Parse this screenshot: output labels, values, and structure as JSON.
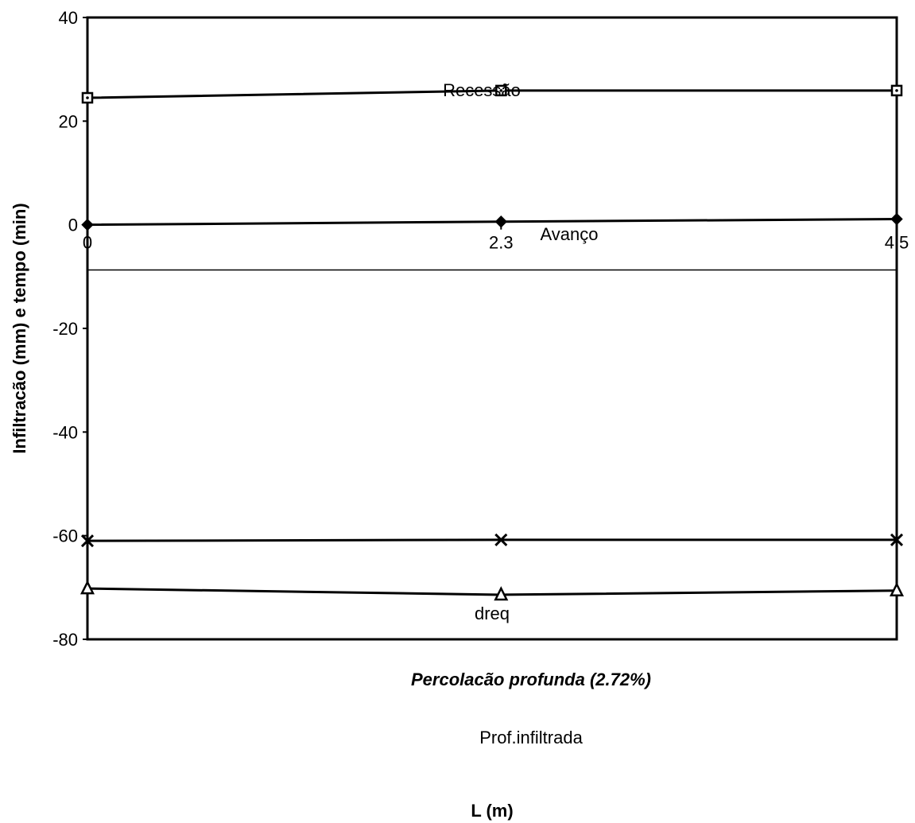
{
  "chart_data": {
    "type": "line",
    "title": "",
    "xlabel": "L (m)",
    "ylabel": "Infiltracão (mm) e tempo (min)",
    "xlim": [
      0,
      4.5
    ],
    "ylim": [
      -80,
      40
    ],
    "x_ticks": [
      "0",
      "2.3",
      "4.5"
    ],
    "y_ticks": [
      "40",
      "20",
      "0",
      "-20",
      "-40",
      "-60",
      "-80"
    ],
    "grid": false,
    "series": [
      {
        "name": "Recessão",
        "marker": "square",
        "x": [
          0,
          2.3,
          4.5
        ],
        "values": [
          24.5,
          25.9,
          25.9
        ]
      },
      {
        "name": "Avanço",
        "marker": "diamond",
        "x": [
          0,
          2.3,
          4.5
        ],
        "values": [
          0,
          0.6,
          1.1
        ]
      },
      {
        "name": "dreq",
        "marker": "x",
        "x": [
          0,
          2.3,
          4.5
        ],
        "values": [
          -61,
          -60.8,
          -60.8
        ]
      },
      {
        "name": "Prof.infiltrada",
        "marker": "triangle",
        "x": [
          0,
          2.3,
          4.5
        ],
        "values": [
          -70.2,
          -71.4,
          -70.6
        ]
      }
    ],
    "annotations": [
      {
        "text": "Percolacão profunda (2.72%)",
        "style": "bold-italic"
      }
    ]
  }
}
